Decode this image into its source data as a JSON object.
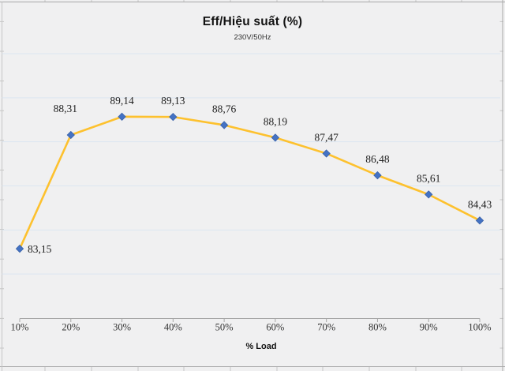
{
  "chart_data": {
    "type": "line",
    "title": "Eff/Hiệu suất (%)",
    "subtitle": "230V/50Hz",
    "xlabel": "% Load",
    "ylabel": "",
    "categories": [
      "10%",
      "20%",
      "30%",
      "40%",
      "50%",
      "60%",
      "70%",
      "80%",
      "90%",
      "100%"
    ],
    "series": [
      {
        "name": "Eff/Hiệu suất",
        "values": [
          83.15,
          88.31,
          89.14,
          89.13,
          88.76,
          88.19,
          87.47,
          86.48,
          85.61,
          84.43
        ],
        "point_labels": [
          "83,15",
          "88,31",
          "89,14",
          "89,13",
          "88,76",
          "88,19",
          "87,47",
          "86,48",
          "85,61",
          "84,43"
        ]
      }
    ],
    "ylim": [
      80,
      92
    ],
    "grid_step": 2,
    "grid": "horizontal",
    "yaxis_tick_labels_visible": false,
    "legend": "none",
    "colors": {
      "line": "#FDC12E",
      "marker": "#4472C4",
      "marker_edge": "#3A62A8",
      "gridline": "#DCE6F1",
      "axis": "#A6A6A6",
      "frame_border": "#A8A8A8",
      "edge_line": "#C6C6C6",
      "background": "#F0F0F1",
      "data_label": "#1F1F1F",
      "tick_label": "#333333"
    }
  }
}
